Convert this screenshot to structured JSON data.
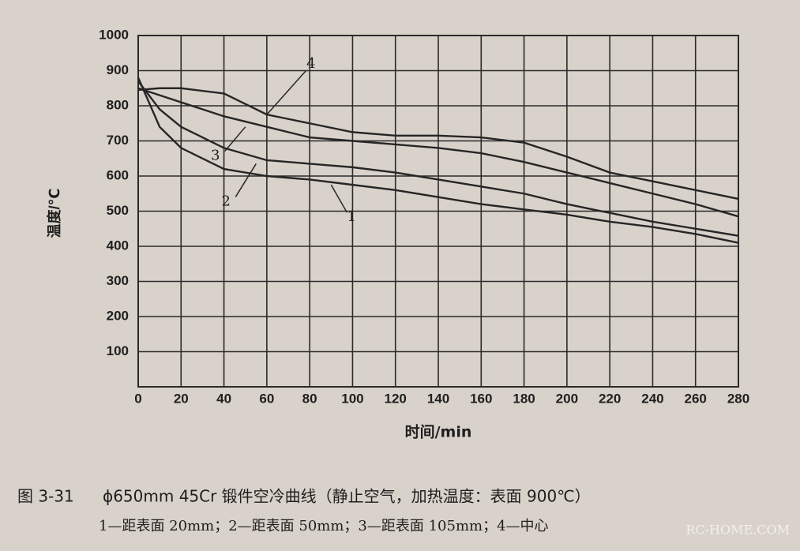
{
  "chart_data": {
    "type": "line",
    "figure_label": "图 3-31",
    "title": "ϕ650mm 45Cr 锻件空冷曲线（静止空气，加热温度：表面 900℃）",
    "subtitle": "1—距表面 20mm；2—距表面 50mm；3—距表面 105mm；4—中心",
    "x_label": "时间/min",
    "y_label": "温度/℃",
    "x": [
      0,
      10,
      20,
      40,
      60,
      80,
      100,
      120,
      140,
      160,
      180,
      200,
      220,
      240,
      260,
      280
    ],
    "series": [
      {
        "name": "1",
        "color": "#262626",
        "values": [
          880,
          740,
          680,
          620,
          600,
          590,
          575,
          560,
          540,
          520,
          505,
          490,
          470,
          455,
          435,
          410
        ]
      },
      {
        "name": "2",
        "color": "#262626",
        "values": [
          870,
          790,
          740,
          680,
          645,
          635,
          625,
          610,
          590,
          570,
          550,
          520,
          495,
          470,
          450,
          430
        ]
      },
      {
        "name": "3",
        "color": "#262626",
        "values": [
          850,
          830,
          810,
          770,
          740,
          710,
          700,
          690,
          680,
          665,
          640,
          610,
          580,
          550,
          520,
          485
        ]
      },
      {
        "name": "4",
        "color": "#262626",
        "values": [
          845,
          850,
          850,
          835,
          775,
          750,
          725,
          715,
          715,
          710,
          695,
          655,
          610,
          585,
          560,
          535
        ]
      }
    ],
    "xlim": [
      0,
      280
    ],
    "ylim": [
      0,
      1000
    ],
    "xticks": [
      0,
      20,
      40,
      60,
      80,
      100,
      120,
      140,
      160,
      180,
      200,
      220,
      240,
      260,
      280
    ],
    "yticks": [
      100,
      200,
      300,
      400,
      500,
      600,
      700,
      800,
      900,
      1000
    ],
    "grid": true
  },
  "watermark": "RC-HOME.COM"
}
